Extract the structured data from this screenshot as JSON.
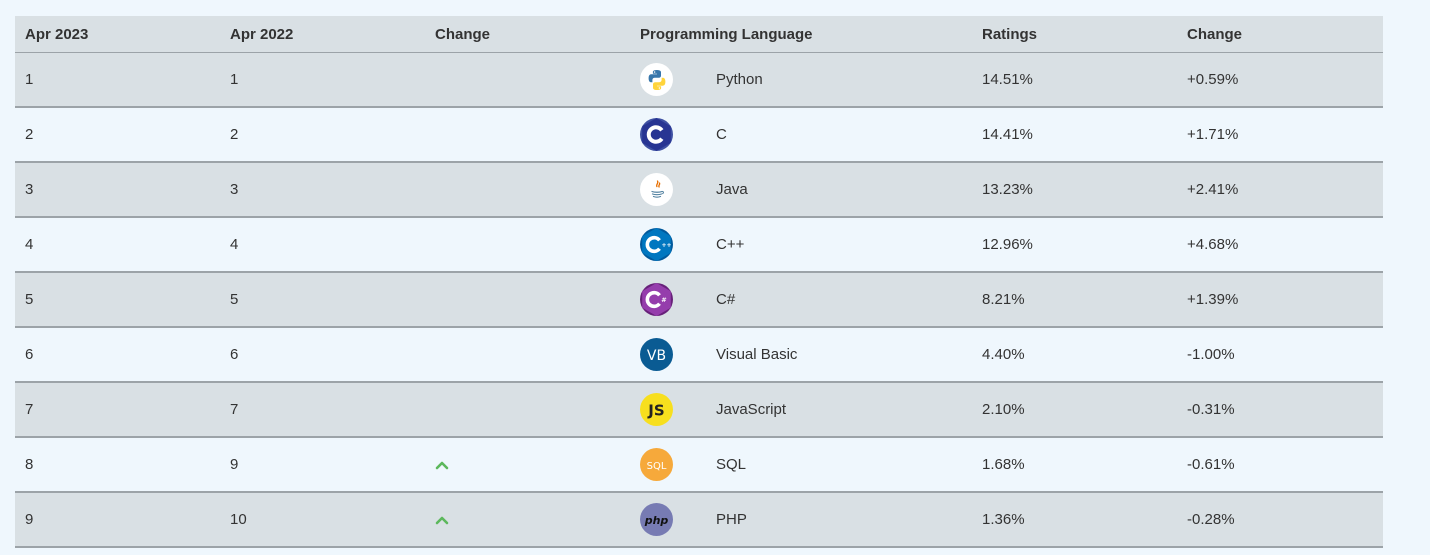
{
  "table": {
    "headers": {
      "rank_current": "Apr 2023",
      "rank_previous": "Apr 2022",
      "change": "Change",
      "language": "Programming Language",
      "ratings": "Ratings",
      "ratings_change": "Change"
    },
    "rows": [
      {
        "rank_current": "1",
        "rank_previous": "1",
        "trend": "none",
        "icon": "python-icon",
        "language": "Python",
        "ratings": "14.51%",
        "change": "+0.59%"
      },
      {
        "rank_current": "2",
        "rank_previous": "2",
        "trend": "none",
        "icon": "c-icon",
        "language": "C",
        "ratings": "14.41%",
        "change": "+1.71%"
      },
      {
        "rank_current": "3",
        "rank_previous": "3",
        "trend": "none",
        "icon": "java-icon",
        "language": "Java",
        "ratings": "13.23%",
        "change": "+2.41%"
      },
      {
        "rank_current": "4",
        "rank_previous": "4",
        "trend": "none",
        "icon": "cpp-icon",
        "language": "C++",
        "ratings": "12.96%",
        "change": "+4.68%"
      },
      {
        "rank_current": "5",
        "rank_previous": "5",
        "trend": "none",
        "icon": "csharp-icon",
        "language": "C#",
        "ratings": "8.21%",
        "change": "+1.39%"
      },
      {
        "rank_current": "6",
        "rank_previous": "6",
        "trend": "none",
        "icon": "visual-basic-icon",
        "language": "Visual Basic",
        "ratings": "4.40%",
        "change": "-1.00%"
      },
      {
        "rank_current": "7",
        "rank_previous": "7",
        "trend": "none",
        "icon": "javascript-icon",
        "language": "JavaScript",
        "ratings": "2.10%",
        "change": "-0.31%"
      },
      {
        "rank_current": "8",
        "rank_previous": "9",
        "trend": "up",
        "icon": "sql-icon",
        "language": "SQL",
        "ratings": "1.68%",
        "change": "-0.61%"
      },
      {
        "rank_current": "9",
        "rank_previous": "10",
        "trend": "up",
        "icon": "php-icon",
        "language": "PHP",
        "ratings": "1.36%",
        "change": "-0.28%"
      }
    ],
    "logo_text": {
      "vb": "VB",
      "js": "JS",
      "sql": "SQL",
      "php": "php"
    }
  },
  "colors": {
    "row_odd": "#d9e0e4",
    "row_even": "#eff7fd",
    "trend_up": "#5cb85c"
  }
}
